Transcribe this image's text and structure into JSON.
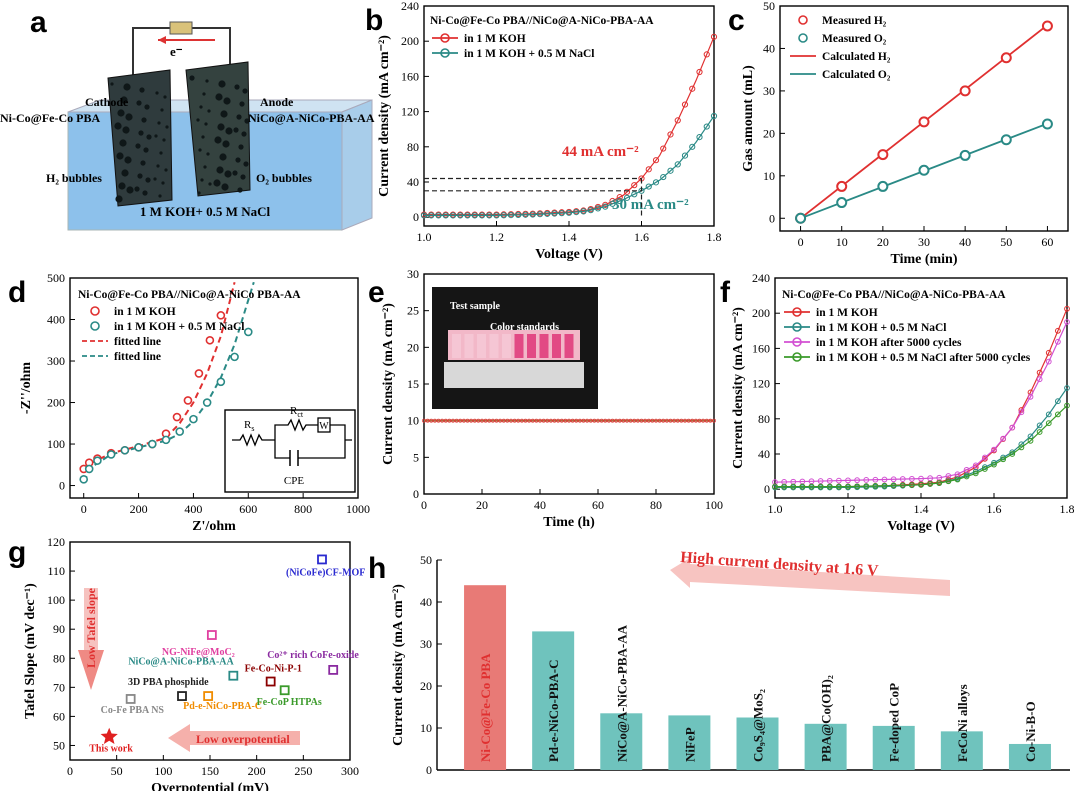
{
  "colors": {
    "red": "#e03030",
    "teal": "#2a8a86",
    "magenta": "#d24fd2",
    "green": "#3a9a2a",
    "pinkbar": "#e87a76",
    "tealbar": "#6fc3bd",
    "blackdash": "#222222"
  },
  "chart_data": [
    {
      "panel": "a",
      "type": "other",
      "label": "a",
      "texts": {
        "electron": "e⁻",
        "cathode": "Cathode",
        "cathode_mat": "Ni-Co@Fe-Co PBA",
        "anode": "Anode",
        "anode_mat": "NiCo@A-NiCo-PBA-AA",
        "h2": "H₂ bubbles",
        "o2": "O₂ bubbles",
        "electrolyte": "1 M KOH+ 0.5 M NaCl"
      }
    },
    {
      "panel": "b",
      "type": "line",
      "label": "b",
      "title": "Ni-Co@Fe-Co PBA//NiCo@A-NiCo-PBA-AA",
      "xlabel": "Voltage (V)",
      "ylabel": "Current density (mA cm⁻²)",
      "xlim": [
        1.0,
        1.8
      ],
      "ylim": [
        -10,
        240
      ],
      "xticks": [
        1.0,
        1.2,
        1.4,
        1.6,
        1.8
      ],
      "yticks": [
        0,
        40,
        80,
        120,
        160,
        200,
        240
      ],
      "series": [
        {
          "name": "in 1 M KOH",
          "color": "red",
          "x": [
            1.0,
            1.1,
            1.2,
            1.3,
            1.4,
            1.45,
            1.5,
            1.55,
            1.6,
            1.65,
            1.7,
            1.75,
            1.8
          ],
          "y": [
            3,
            3,
            3,
            4,
            6,
            8,
            14,
            25,
            44,
            70,
            110,
            155,
            205
          ]
        },
        {
          "name": "in 1 M KOH + 0.5 M NaCl",
          "color": "teal",
          "x": [
            1.0,
            1.1,
            1.2,
            1.3,
            1.4,
            1.45,
            1.5,
            1.55,
            1.6,
            1.65,
            1.7,
            1.75,
            1.8
          ],
          "y": [
            2,
            2,
            2,
            3,
            5,
            7,
            12,
            20,
            30,
            42,
            60,
            85,
            115
          ]
        }
      ],
      "annotations": [
        {
          "text": "44 mA cm⁻²",
          "color": "red",
          "y": 44
        },
        {
          "text": "30 mA cm⁻²",
          "color": "teal",
          "y": 30
        }
      ]
    },
    {
      "panel": "c",
      "type": "scatter",
      "label": "c",
      "xlabel": "Time (min)",
      "ylabel": "Gas amount (mL)",
      "xlim": [
        -5,
        65
      ],
      "ylim": [
        -3,
        50
      ],
      "xticks": [
        0,
        10,
        20,
        30,
        40,
        50,
        60
      ],
      "yticks": [
        0,
        10,
        20,
        30,
        40,
        50
      ],
      "series": [
        {
          "name": "Measured H₂",
          "color": "red",
          "kind": "marker",
          "x": [
            0,
            10,
            20,
            30,
            40,
            50,
            60
          ],
          "y": [
            0,
            7.5,
            15,
            22.7,
            30,
            37.8,
            45.3
          ]
        },
        {
          "name": "Measured O₂",
          "color": "teal",
          "kind": "marker",
          "x": [
            0,
            10,
            20,
            30,
            40,
            50,
            60
          ],
          "y": [
            0,
            3.7,
            7.5,
            11.3,
            14.8,
            18.5,
            22.2
          ]
        },
        {
          "name": "Calculated H₂",
          "color": "red",
          "kind": "line",
          "x": [
            0,
            60
          ],
          "y": [
            0,
            45.5
          ]
        },
        {
          "name": "Calculated O₂",
          "color": "teal",
          "kind": "line",
          "x": [
            0,
            60
          ],
          "y": [
            0,
            22.3
          ]
        }
      ]
    },
    {
      "panel": "d",
      "type": "scatter",
      "label": "d",
      "title": "Ni-Co@Fe-Co PBA//NiCo@A-NiCo PBA-AA",
      "xlabel": "Z'/ohm",
      "ylabel": "-Z''/ohm",
      "xlim": [
        -50,
        1000
      ],
      "ylim": [
        -30,
        500
      ],
      "xticks": [
        0,
        200,
        400,
        600,
        800,
        1000
      ],
      "yticks": [
        0,
        100,
        200,
        300,
        400,
        500
      ],
      "series": [
        {
          "name": "in 1 M KOH",
          "color": "red",
          "kind": "marker",
          "x": [
            0,
            20,
            50,
            100,
            150,
            200,
            250,
            300,
            340,
            380,
            420,
            460,
            500
          ],
          "y": [
            40,
            55,
            65,
            78,
            85,
            92,
            100,
            125,
            165,
            205,
            270,
            350,
            410
          ]
        },
        {
          "name": "in 1 M KOH + 0.5 M NaCl",
          "color": "teal",
          "kind": "marker",
          "x": [
            0,
            20,
            50,
            100,
            150,
            200,
            250,
            300,
            350,
            400,
            450,
            500,
            550,
            600
          ],
          "y": [
            15,
            40,
            60,
            75,
            85,
            92,
            100,
            110,
            130,
            160,
            200,
            250,
            310,
            370
          ]
        },
        {
          "name": "fitted line",
          "color": "red",
          "kind": "dash",
          "x": [
            0,
            30,
            100,
            200,
            300,
            350,
            400,
            450,
            500,
            550
          ],
          "y": [
            35,
            55,
            78,
            95,
            115,
            150,
            200,
            270,
            360,
            490
          ]
        },
        {
          "name": "fitted line",
          "color": "teal",
          "kind": "dash",
          "x": [
            0,
            30,
            100,
            200,
            300,
            350,
            400,
            450,
            500,
            550,
            620
          ],
          "y": [
            10,
            45,
            75,
            92,
            108,
            125,
            155,
            200,
            260,
            340,
            490
          ]
        }
      ],
      "inset": {
        "rs": "R",
        "rs_sub": "s",
        "rct": "R",
        "rct_sub": "ct",
        "w": "W",
        "cpe": "CPE"
      }
    },
    {
      "panel": "e",
      "type": "line",
      "label": "e",
      "xlabel": "Time (h)",
      "ylabel": "Current density (mA cm⁻²)",
      "xlim": [
        0,
        100
      ],
      "ylim": [
        0,
        30
      ],
      "xticks": [
        0,
        20,
        40,
        60,
        80,
        100
      ],
      "yticks": [
        0,
        5,
        10,
        15,
        20,
        25,
        30
      ],
      "series": [
        {
          "name": "stability",
          "color": "red",
          "x": [
            0,
            100
          ],
          "y": [
            10,
            10
          ]
        }
      ],
      "inset": {
        "test_sample": "Test sample",
        "color_standards": "Color standards"
      }
    },
    {
      "panel": "f",
      "type": "line",
      "label": "f",
      "title": "Ni-Co@Fe-Co PBA//NiCo@A-NiCo-PBA-AA",
      "xlabel": "Voltage (V)",
      "ylabel": "Current density (mA cm⁻²)",
      "xlim": [
        1.0,
        1.8
      ],
      "ylim": [
        -10,
        240
      ],
      "xticks": [
        1.0,
        1.2,
        1.4,
        1.6,
        1.8
      ],
      "yticks": [
        0,
        40,
        80,
        120,
        160,
        200,
        240
      ],
      "series": [
        {
          "name": "in 1 M KOH",
          "color": "red",
          "x": [
            1.0,
            1.1,
            1.2,
            1.3,
            1.4,
            1.45,
            1.5,
            1.55,
            1.6,
            1.65,
            1.7,
            1.75,
            1.8
          ],
          "y": [
            3,
            3,
            3,
            4,
            6,
            8,
            14,
            25,
            44,
            70,
            110,
            155,
            205
          ]
        },
        {
          "name": "in 1 M KOH + 0.5 M NaCl",
          "color": "teal",
          "x": [
            1.0,
            1.1,
            1.2,
            1.3,
            1.4,
            1.45,
            1.5,
            1.55,
            1.6,
            1.65,
            1.7,
            1.75,
            1.8
          ],
          "y": [
            2,
            2,
            2,
            3,
            5,
            7,
            12,
            20,
            30,
            42,
            60,
            85,
            115
          ]
        },
        {
          "name": "in 1 M KOH after 5000 cycles",
          "color": "magenta",
          "x": [
            1.0,
            1.1,
            1.2,
            1.3,
            1.4,
            1.45,
            1.5,
            1.55,
            1.6,
            1.65,
            1.7,
            1.75,
            1.8
          ],
          "y": [
            8,
            9,
            10,
            11,
            12,
            13,
            17,
            27,
            45,
            70,
            105,
            145,
            190
          ]
        },
        {
          "name": "in 1 M KOH + 0.5 M NaCl after 5000 cycles",
          "color": "green",
          "x": [
            1.0,
            1.1,
            1.2,
            1.3,
            1.4,
            1.45,
            1.5,
            1.55,
            1.6,
            1.65,
            1.7,
            1.75,
            1.8
          ],
          "y": [
            3,
            3,
            3,
            4,
            5,
            7,
            11,
            18,
            28,
            40,
            55,
            75,
            95
          ]
        }
      ]
    },
    {
      "panel": "g",
      "type": "scatter",
      "label": "g",
      "xlabel": "Overpotential (mV)",
      "ylabel": "Tafel Slope (mV dec⁻¹)",
      "xlim": [
        0,
        300
      ],
      "ylim": [
        45,
        120
      ],
      "xticks": [
        0,
        50,
        100,
        150,
        200,
        250,
        300
      ],
      "yticks": [
        50,
        60,
        70,
        80,
        90,
        100,
        110,
        120
      ],
      "arrows": {
        "low_tafel": "Low Tafel slope",
        "low_over": "Low overpotential"
      },
      "points": [
        {
          "name": "This work",
          "x": 42,
          "y": 53,
          "color": "#e02020",
          "marker": "star"
        },
        {
          "name": "Co-Fe PBA NS",
          "x": 65,
          "y": 66,
          "color": "#888888",
          "marker": "square"
        },
        {
          "name": "3D PBA phosphide",
          "x": 120,
          "y": 67,
          "color": "#222222",
          "marker": "square"
        },
        {
          "name": "Pd-e-NiCo-PBA-C",
          "x": 148,
          "y": 67,
          "color": "#f08c00",
          "marker": "square"
        },
        {
          "name": "NiCo@A-NiCo-PBA-AA",
          "x": 175,
          "y": 74,
          "color": "#2a8a86",
          "marker": "square"
        },
        {
          "name": "NG-NiFe@MoC₂",
          "x": 152,
          "y": 88,
          "color": "#e040a0",
          "marker": "square"
        },
        {
          "name": "Fe-Co-Ni-P-1",
          "x": 215,
          "y": 72,
          "color": "#8b0000",
          "marker": "square"
        },
        {
          "name": "Fe-CoP HTPAs",
          "x": 230,
          "y": 69,
          "color": "#3a9a2a",
          "marker": "square"
        },
        {
          "name": "Co²⁺ rich CoFe-oxide",
          "x": 282,
          "y": 76,
          "color": "#8a2aa0",
          "marker": "square"
        },
        {
          "name": "(NiCoFe)CF-MOF",
          "x": 270,
          "y": 114,
          "color": "#2a2ad0",
          "marker": "square"
        }
      ]
    },
    {
      "panel": "h",
      "type": "bar",
      "label": "h",
      "ylabel": "Current density (mA cm⁻²)",
      "ylim": [
        0,
        50
      ],
      "yticks": [
        0,
        10,
        20,
        30,
        40,
        50
      ],
      "banner": "High current density at 1.6 V",
      "categories": [
        "Ni-Co@Fe-Co PBA",
        "Pd-e-NiCo-PBA-C",
        "NiCo@A-NiCo-PBA-AA",
        "NiFeP",
        "Co₉S₄@MoS₂",
        "PBA@Co(OH)₂",
        "Fe-doped CoP",
        "FeCoNi alloys",
        "Co-Ni-B-O"
      ],
      "values": [
        44,
        33,
        13.5,
        13,
        12.5,
        11,
        10.5,
        9.2,
        6.2
      ]
    }
  ]
}
